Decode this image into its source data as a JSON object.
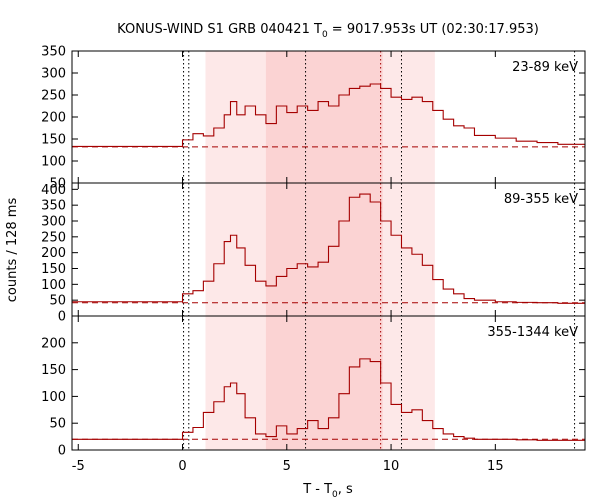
{
  "title": {
    "prefix": "KONUS-WIND S1 GRB 040421 T",
    "subscript": "0",
    "suffix": " = 9017.953s UT (02:30:17.953)"
  },
  "xlabel": {
    "prefix": "T - T",
    "subscript": "0",
    "suffix": ", s"
  },
  "ylabel": "counts / 128 ms",
  "colors": {
    "curve": "#a50000",
    "band_light": "#fde8e8",
    "band_dark": "#fbd3d3",
    "frame": "#000000"
  },
  "chart_data": {
    "type": "line",
    "step": true,
    "xlim": [
      -5.3,
      19.3
    ],
    "xticks": [
      -5,
      0,
      5,
      10,
      15
    ],
    "xticklabels": [
      "-5",
      "0",
      "5",
      "10",
      "15"
    ],
    "shaded_intervals": [
      {
        "x0": 1.1,
        "x1": 12.1,
        "level": "light"
      },
      {
        "x0": 4.0,
        "x1": 9.6,
        "level": "dark"
      }
    ],
    "vertical_lines": [
      {
        "x": 0.05,
        "style": "dotted",
        "color": "black"
      },
      {
        "x": 0.3,
        "style": "dotted",
        "color": "black"
      },
      {
        "x": 5.9,
        "style": "dotted",
        "color": "black"
      },
      {
        "x": 9.5,
        "style": "dotted",
        "color": "red"
      },
      {
        "x": 10.5,
        "style": "dotted",
        "color": "black"
      },
      {
        "x": 18.8,
        "style": "dotted",
        "color": "black"
      }
    ],
    "panels": [
      {
        "label": "23-89 keV",
        "ylim": [
          50,
          350
        ],
        "yticks": [
          50,
          100,
          150,
          200,
          250,
          300,
          350
        ],
        "yticklabels": [
          "50",
          "100",
          "150",
          "200",
          "250",
          "300",
          "350"
        ],
        "background": 132,
        "x": [
          -5.3,
          -2.0,
          0.0,
          0.5,
          1.0,
          1.5,
          2.0,
          2.3,
          2.6,
          3.0,
          3.5,
          4.0,
          4.5,
          5.0,
          5.5,
          6.0,
          6.5,
          7.0,
          7.5,
          8.0,
          8.5,
          9.0,
          9.5,
          10.0,
          10.5,
          11.0,
          11.5,
          12.0,
          12.5,
          13.0,
          13.5,
          14.0,
          15.0,
          16.0,
          17.0,
          18.0,
          19.3
        ],
        "y": [
          133,
          133,
          148,
          162,
          157,
          175,
          205,
          235,
          205,
          225,
          205,
          185,
          225,
          210,
          225,
          215,
          235,
          225,
          250,
          265,
          270,
          275,
          265,
          245,
          240,
          245,
          235,
          215,
          195,
          180,
          175,
          158,
          152,
          145,
          142,
          138,
          135
        ]
      },
      {
        "label": "89-355 keV",
        "ylim": [
          0,
          420
        ],
        "yticks": [
          0,
          50,
          100,
          150,
          200,
          250,
          300,
          350,
          400
        ],
        "yticklabels": [
          "0",
          "50",
          "100",
          "150",
          "200",
          "250",
          "300",
          "350",
          "400"
        ],
        "background": 42,
        "x": [
          -5.3,
          -1.0,
          0.0,
          0.5,
          1.0,
          1.5,
          2.0,
          2.3,
          2.6,
          3.0,
          3.5,
          4.0,
          4.5,
          5.0,
          5.5,
          6.0,
          6.5,
          7.0,
          7.5,
          8.0,
          8.5,
          9.0,
          9.5,
          10.0,
          10.5,
          11.0,
          11.5,
          12.0,
          12.5,
          13.0,
          13.5,
          14.0,
          15.0,
          16.0,
          17.0,
          18.0,
          19.3
        ],
        "y": [
          45,
          45,
          70,
          80,
          110,
          165,
          235,
          255,
          215,
          160,
          110,
          95,
          125,
          150,
          165,
          155,
          170,
          220,
          300,
          375,
          385,
          360,
          300,
          255,
          215,
          195,
          160,
          115,
          85,
          70,
          55,
          50,
          45,
          43,
          42,
          40,
          40
        ]
      },
      {
        "label": "355-1344 keV",
        "ylim": [
          0,
          250
        ],
        "yticks": [
          0,
          50,
          100,
          150,
          200
        ],
        "yticklabels": [
          "0",
          "50",
          "100",
          "150",
          "200"
        ],
        "background": 20,
        "x": [
          -5.3,
          -1.0,
          0.0,
          0.5,
          1.0,
          1.5,
          2.0,
          2.3,
          2.6,
          3.0,
          3.5,
          4.0,
          4.5,
          5.0,
          5.5,
          6.0,
          6.5,
          7.0,
          7.5,
          8.0,
          8.5,
          9.0,
          9.5,
          10.0,
          10.5,
          11.0,
          11.5,
          12.0,
          12.5,
          13.0,
          13.5,
          14.0,
          15.0,
          16.0,
          17.0,
          18.0,
          19.3
        ],
        "y": [
          20,
          20,
          33,
          42,
          70,
          90,
          118,
          125,
          105,
          60,
          30,
          25,
          45,
          30,
          40,
          55,
          40,
          60,
          105,
          155,
          170,
          165,
          125,
          85,
          70,
          75,
          55,
          40,
          30,
          25,
          22,
          20,
          20,
          19,
          18,
          18,
          18
        ]
      }
    ]
  }
}
